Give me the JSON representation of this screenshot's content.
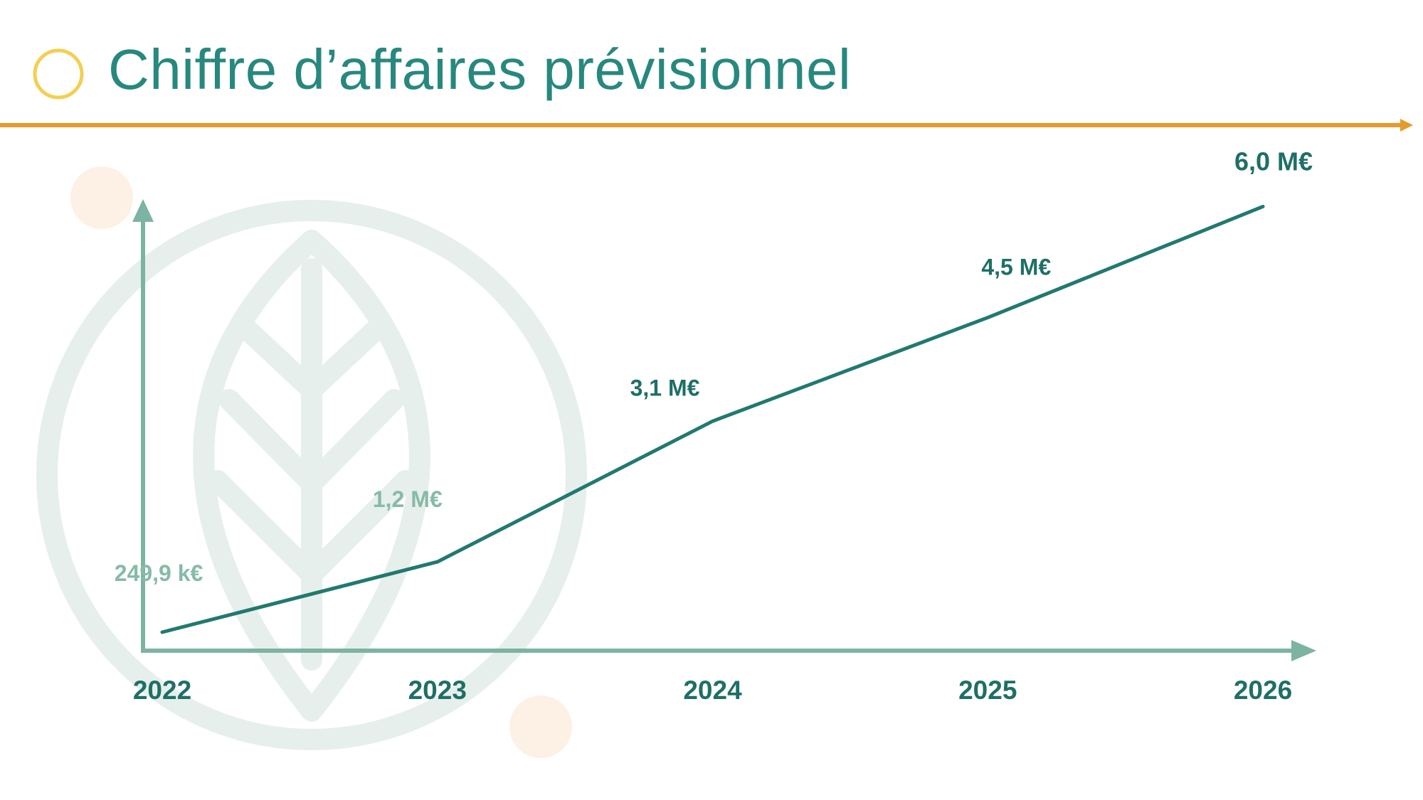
{
  "slide": {
    "title": "Chiffre d’affaires prévisionnel"
  },
  "colors": {
    "title": "#27887e",
    "line": "#21796f",
    "axis": "#7db3a1",
    "rule": "#e69a2e",
    "title_circle": "#f3cf52",
    "label_dark": "#1f6f66",
    "label_light": "#86bba6",
    "watermark": "#e6efec",
    "accent_dot": "#fdf0e4"
  },
  "chart_data": {
    "type": "line",
    "title": "",
    "xlabel": "",
    "ylabel": "",
    "categories": [
      "2022",
      "2023",
      "2024",
      "2025",
      "2026"
    ],
    "values": [
      0.2499,
      1.2,
      3.1,
      4.5,
      6.0
    ],
    "unit": "M€",
    "data_labels": [
      "249,9 k€",
      "1,2 M€",
      "3,1 M€",
      "4,5 M€",
      "6,0 M€"
    ],
    "ylim": [
      0,
      6.6
    ],
    "grid": false,
    "legend": "none"
  }
}
